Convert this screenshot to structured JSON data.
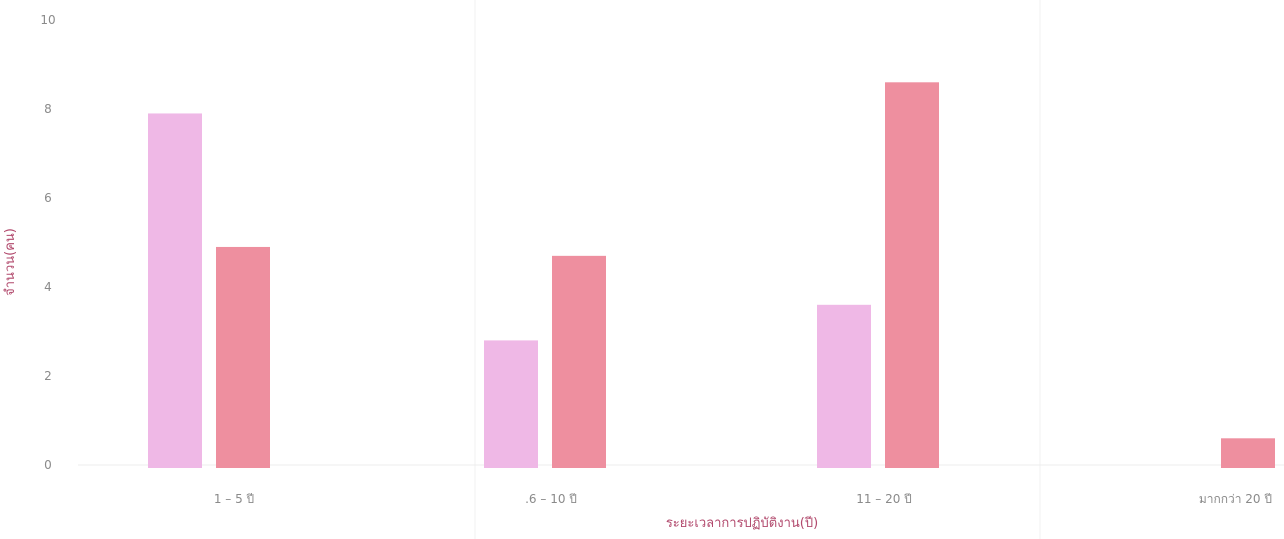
{
  "chart_data": {
    "type": "bar",
    "categories": [
      "1 – 5 ปี",
      ".6 – 10 ปี",
      "11 – 20 ปี",
      "มากกว่า 20 ปี"
    ],
    "series": [
      {
        "values": [
          7.9,
          2.8,
          3.6,
          0
        ],
        "color": "#efb8e6"
      },
      {
        "values": [
          4.9,
          4.7,
          8.6,
          0.6
        ],
        "color": "#ee8f9f"
      }
    ],
    "xlabel": "ระยะเวลาการปฏิบัติงาน(ปี)",
    "ylabel": "จำนวน(คน)",
    "ylim": [
      0,
      10
    ],
    "yticks": [
      0,
      2,
      4,
      6,
      8,
      10
    ],
    "grid": false,
    "legend": "none"
  }
}
